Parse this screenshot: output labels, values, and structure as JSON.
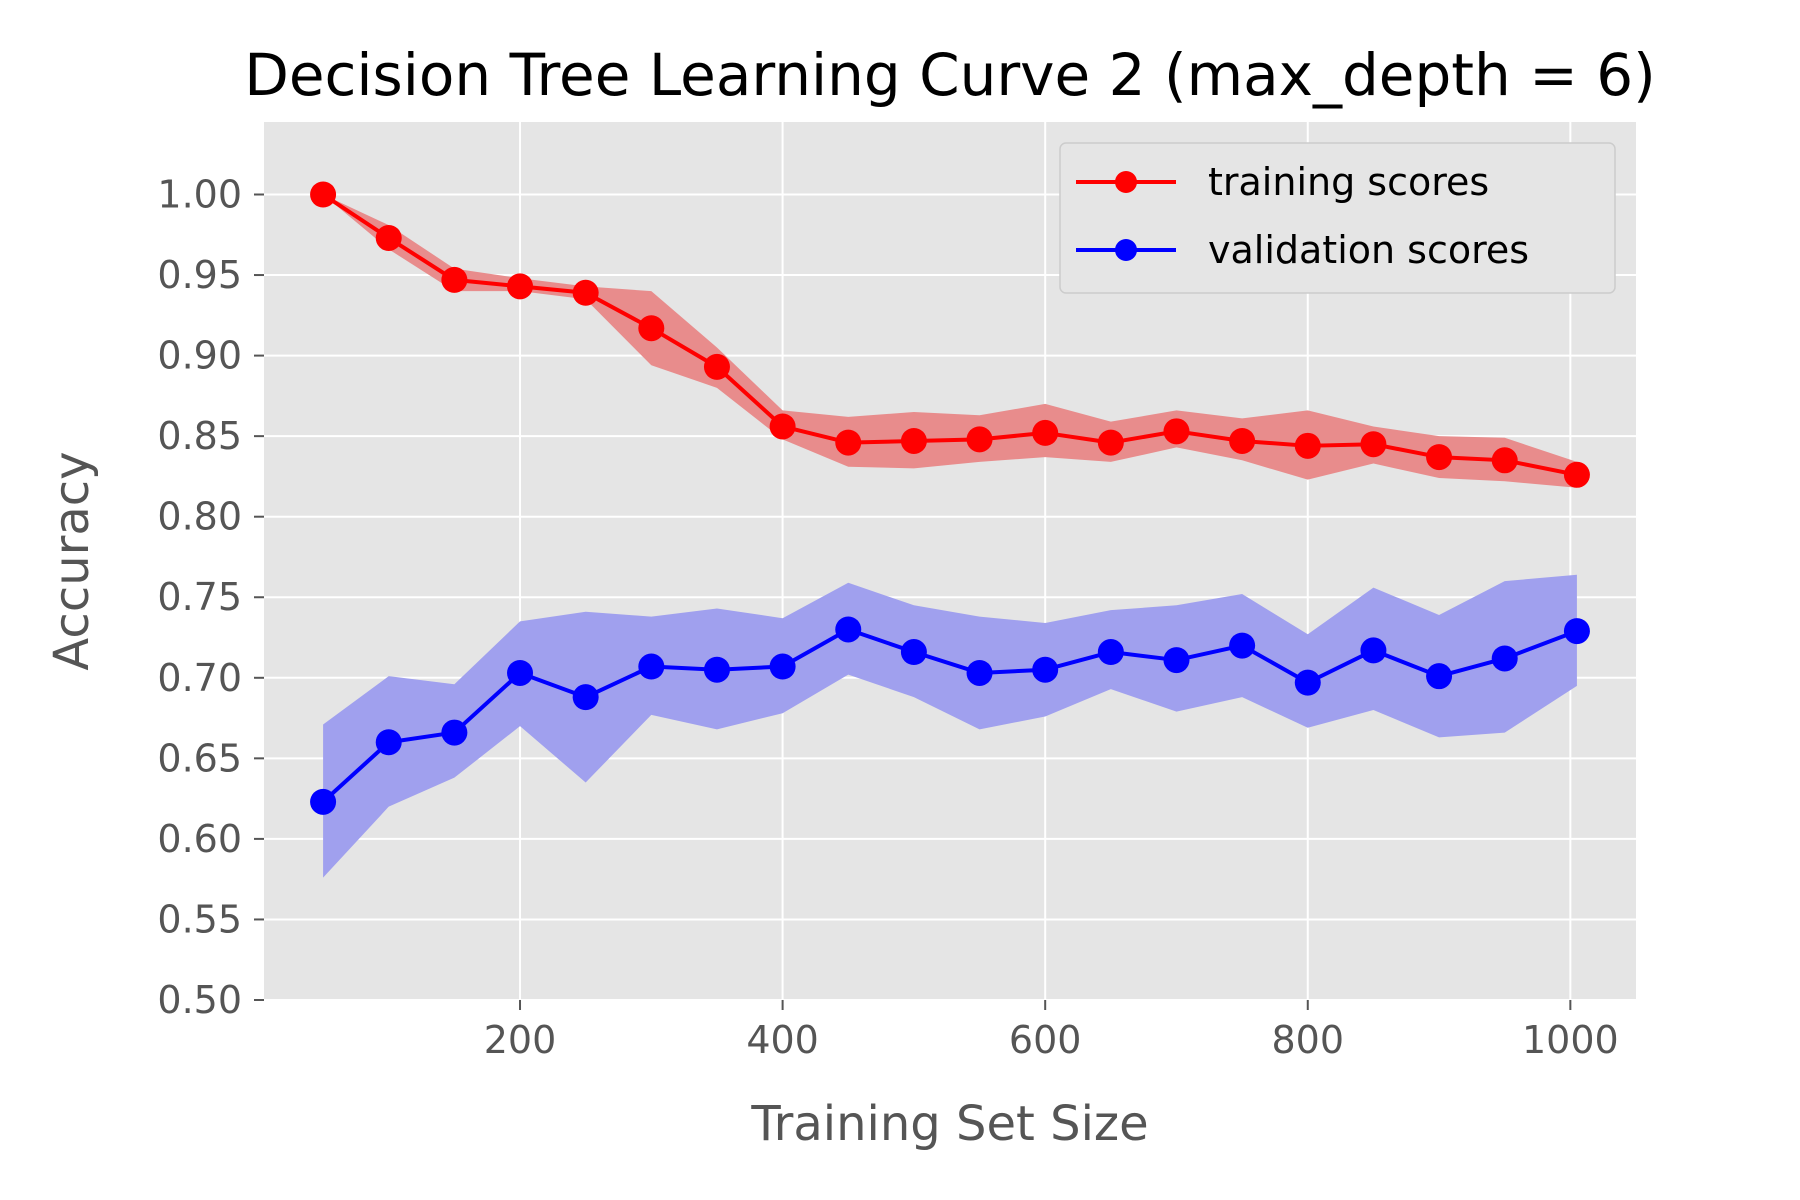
{
  "chart_data": {
    "type": "line",
    "title": "Decision Tree Learning Curve 2 (max_depth = 6)",
    "xlabel": "Training Set Size",
    "ylabel": "Accuracy",
    "xlim": [
      5,
      1050
    ],
    "ylim": [
      0.5,
      1.045
    ],
    "xticks": [
      "200",
      "400",
      "600",
      "800",
      "1000"
    ],
    "yticks": [
      "0.50",
      "0.55",
      "0.60",
      "0.65",
      "0.70",
      "0.75",
      "0.80",
      "0.85",
      "0.90",
      "0.95",
      "1.00"
    ],
    "grid": true,
    "legend_position": "top-right",
    "x": [
      50,
      100,
      150,
      200,
      250,
      300,
      350,
      400,
      450,
      500,
      550,
      600,
      650,
      700,
      750,
      800,
      850,
      900,
      950,
      1005
    ],
    "series": [
      {
        "name": "training scores",
        "color": "#ff0000",
        "band_color": "#e88c8c",
        "values": [
          1.0,
          0.973,
          0.947,
          0.943,
          0.939,
          0.917,
          0.893,
          0.856,
          0.846,
          0.847,
          0.848,
          0.852,
          0.846,
          0.853,
          0.847,
          0.844,
          0.845,
          0.837,
          0.835,
          0.826
        ],
        "upper": [
          1.0,
          0.981,
          0.954,
          0.948,
          0.943,
          0.94,
          0.905,
          0.866,
          0.862,
          0.865,
          0.863,
          0.87,
          0.859,
          0.866,
          0.861,
          0.866,
          0.856,
          0.85,
          0.849,
          0.834
        ],
        "lower": [
          1.0,
          0.966,
          0.94,
          0.94,
          0.935,
          0.894,
          0.88,
          0.848,
          0.831,
          0.83,
          0.834,
          0.837,
          0.834,
          0.843,
          0.835,
          0.823,
          0.833,
          0.824,
          0.822,
          0.818
        ]
      },
      {
        "name": "validation scores",
        "color": "#0000ff",
        "band_color": "#a0a0ee",
        "values": [
          0.623,
          0.66,
          0.666,
          0.703,
          0.688,
          0.707,
          0.705,
          0.707,
          0.73,
          0.716,
          0.703,
          0.705,
          0.716,
          0.711,
          0.72,
          0.697,
          0.717,
          0.701,
          0.712,
          0.729
        ],
        "upper": [
          0.671,
          0.701,
          0.696,
          0.735,
          0.741,
          0.738,
          0.743,
          0.737,
          0.759,
          0.745,
          0.738,
          0.734,
          0.742,
          0.745,
          0.752,
          0.727,
          0.756,
          0.739,
          0.76,
          0.764
        ],
        "lower": [
          0.576,
          0.62,
          0.638,
          0.67,
          0.635,
          0.677,
          0.668,
          0.678,
          0.702,
          0.688,
          0.668,
          0.676,
          0.693,
          0.679,
          0.688,
          0.669,
          0.68,
          0.663,
          0.666,
          0.695
        ]
      }
    ]
  }
}
